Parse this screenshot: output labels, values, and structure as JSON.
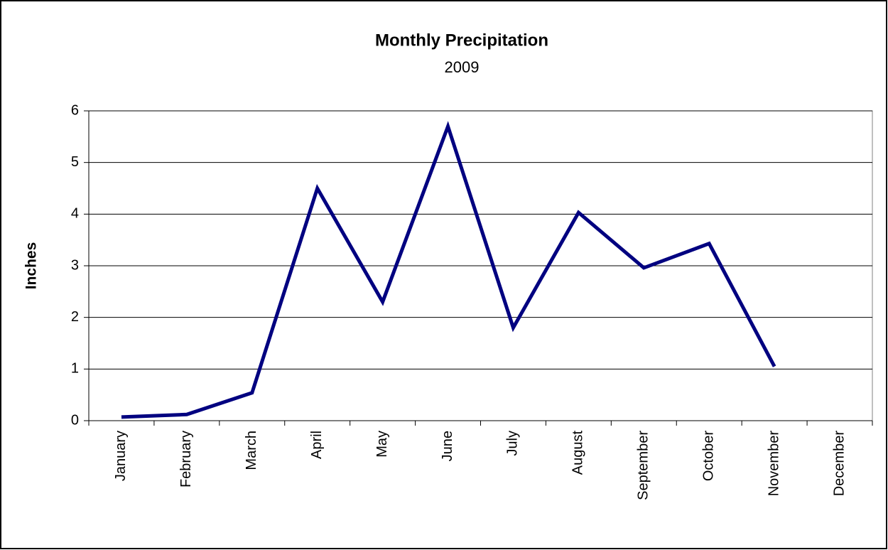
{
  "chart_data": {
    "type": "line",
    "title": "Monthly Precipitation",
    "subtitle": "2009",
    "y_label": "Inches",
    "categories": [
      "January",
      "February",
      "March",
      "April",
      "May",
      "June",
      "July",
      "August",
      "September",
      "October",
      "November",
      "December"
    ],
    "values": [
      0.07,
      0.12,
      0.54,
      4.5,
      2.3,
      5.7,
      1.8,
      4.03,
      2.96,
      3.43,
      1.05,
      null
    ],
    "color": "#000080",
    "ylim": [
      0,
      6
    ],
    "yticks": [
      0,
      1,
      2,
      3,
      4,
      5,
      6
    ],
    "grid": true
  }
}
